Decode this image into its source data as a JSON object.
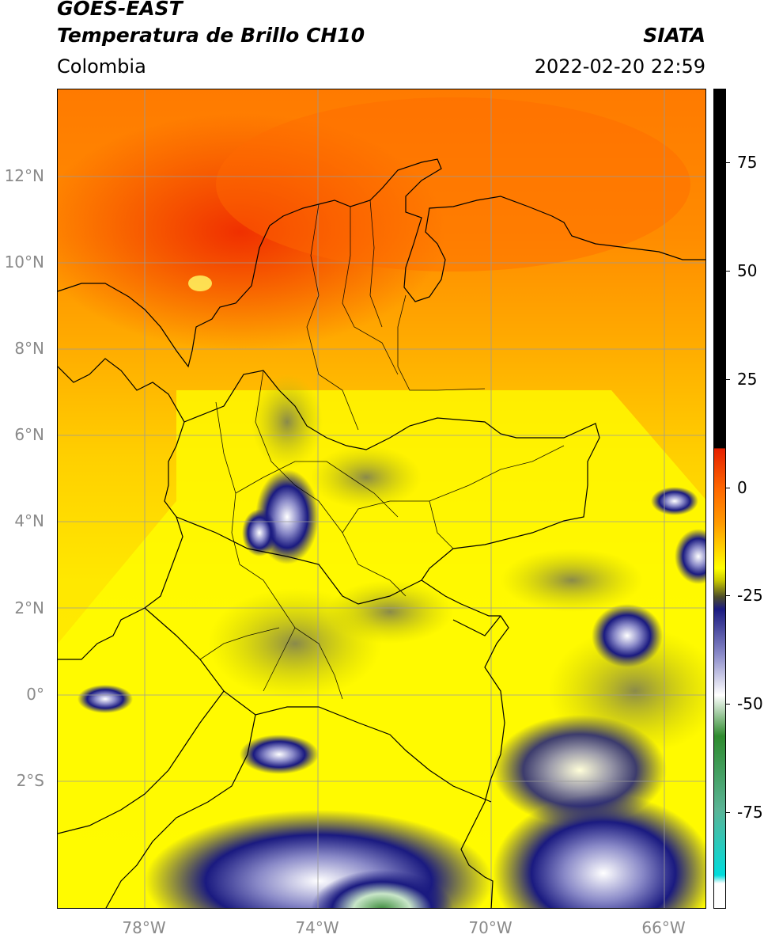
{
  "header": {
    "satellite": "GOES-EAST",
    "product": "Temperatura de Brillo CH10",
    "region": "Colombia",
    "organization": "SIATA",
    "datetime": "2022-02-20 22:59"
  },
  "map": {
    "lat_labels": [
      "12°N",
      "10°N",
      "8°N",
      "6°N",
      "4°N",
      "2°N",
      "0°",
      "2°S"
    ],
    "lon_labels": [
      "78°W",
      "74°W",
      "70°W",
      "66°W"
    ]
  },
  "colorbar": {
    "ticks": [
      "75",
      "50",
      "25",
      "0",
      "-25",
      "-50",
      "-75"
    ],
    "colors": {
      "warm": "#000000",
      "hot": "#e62000",
      "orange": "#ff8c00",
      "yellow": "#ffff00",
      "olive": "#4d4d2a",
      "navy": "#1a1a80",
      "white": "#ffffff",
      "green": "#2e8b2e",
      "cyan": "#00dcdc"
    }
  }
}
